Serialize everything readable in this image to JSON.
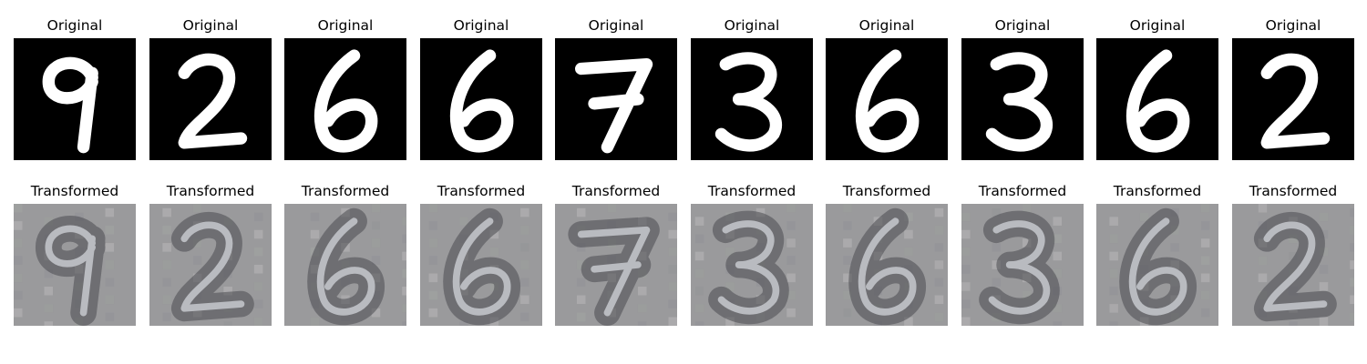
{
  "rows": [
    {
      "row": "top",
      "kind": "original",
      "caption": "Original",
      "digits": [
        "9",
        "2",
        "6",
        "6",
        "7",
        "3",
        "6",
        "3",
        "6",
        "2"
      ]
    },
    {
      "row": "bottom",
      "kind": "transformed",
      "caption": "Transformed",
      "digits": [
        "9",
        "2",
        "6",
        "6",
        "7",
        "3",
        "6",
        "3",
        "6",
        "2"
      ]
    }
  ],
  "colors": {
    "original_background": "#000000",
    "original_stroke": "#ffffff",
    "transformed_background": "#9a9a9c",
    "transformed_stroke": "#3a3a3e"
  }
}
